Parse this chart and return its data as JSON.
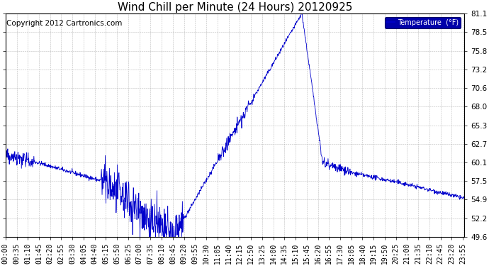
{
  "title": "Wind Chill per Minute (24 Hours) 20120925",
  "copyright_text": "Copyright 2012 Cartronics.com",
  "legend_label": "Temperature  (°F)",
  "line_color": "#0000cc",
  "background_color": "#ffffff",
  "plot_bg_color": "#ffffff",
  "grid_color": "#aaaaaa",
  "legend_bg": "#0000aa",
  "legend_text_color": "#ffffff",
  "ymin": 49.6,
  "ymax": 81.1,
  "yticks": [
    49.6,
    52.2,
    54.9,
    57.5,
    60.1,
    62.7,
    65.3,
    68.0,
    70.6,
    73.2,
    75.8,
    78.5,
    81.1
  ],
  "num_minutes": 1440,
  "title_fontsize": 11,
  "copyright_fontsize": 7.5,
  "tick_fontsize": 7,
  "xtick_step": 35
}
